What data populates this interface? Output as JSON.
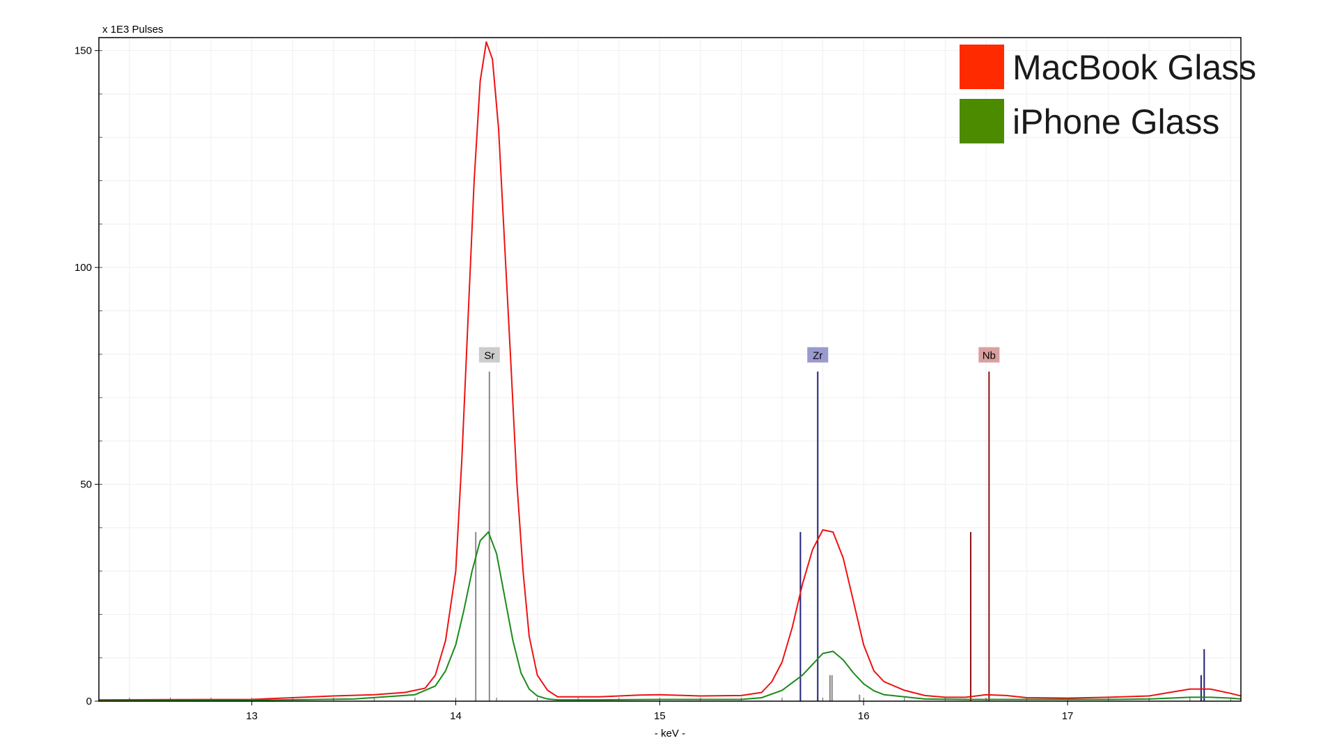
{
  "chart_data": {
    "type": "line",
    "title": "",
    "ylabel": "x 1E3 Pulses",
    "xlabel": "- keV -",
    "xlim": [
      12.25,
      17.85
    ],
    "ylim": [
      0,
      153
    ],
    "xticks": [
      13,
      14,
      15,
      16,
      17
    ],
    "yticks": [
      0,
      50,
      100,
      150
    ],
    "y_minor_step": 10,
    "x_minor_step": 0.2,
    "grid": true,
    "legend_position": "top-right",
    "series": [
      {
        "name": "MacBook Glass",
        "color": "#ff2a00",
        "line_color": "#ee1111",
        "x": [
          12.25,
          13.0,
          13.2,
          13.4,
          13.6,
          13.75,
          13.85,
          13.9,
          13.95,
          14.0,
          14.03,
          14.06,
          14.09,
          14.12,
          14.15,
          14.18,
          14.21,
          14.24,
          14.27,
          14.3,
          14.33,
          14.36,
          14.4,
          14.45,
          14.5,
          14.7,
          14.9,
          15.0,
          15.2,
          15.4,
          15.5,
          15.55,
          15.6,
          15.65,
          15.7,
          15.75,
          15.8,
          15.85,
          15.9,
          15.95,
          16.0,
          16.05,
          16.1,
          16.2,
          16.3,
          16.4,
          16.5,
          16.6,
          16.7,
          16.8,
          17.0,
          17.2,
          17.4,
          17.5,
          17.6,
          17.7,
          17.8,
          17.85
        ],
        "y": [
          0.3,
          0.4,
          0.8,
          1.2,
          1.5,
          2.0,
          3.0,
          6.0,
          14.0,
          30.0,
          56.0,
          88.0,
          120.0,
          143.0,
          152.0,
          148.0,
          132.0,
          105.0,
          78.0,
          50.0,
          30.0,
          15.0,
          6.0,
          2.5,
          1.0,
          1.0,
          1.4,
          1.5,
          1.2,
          1.3,
          2.0,
          4.5,
          9.0,
          17.0,
          27.0,
          35.0,
          39.5,
          39.0,
          33.0,
          23.0,
          13.0,
          7.0,
          4.5,
          2.5,
          1.3,
          0.9,
          0.9,
          1.5,
          1.3,
          0.8,
          0.7,
          0.9,
          1.2,
          2.0,
          2.8,
          2.8,
          1.8,
          1.2
        ]
      },
      {
        "name": "iPhone Glass",
        "color": "#4c8b00",
        "line_color": "#1a8a1a",
        "x": [
          12.25,
          13.0,
          13.5,
          13.8,
          13.9,
          13.95,
          14.0,
          14.04,
          14.08,
          14.12,
          14.16,
          14.2,
          14.24,
          14.28,
          14.32,
          14.36,
          14.4,
          14.45,
          14.5,
          14.7,
          15.0,
          15.2,
          15.4,
          15.5,
          15.6,
          15.7,
          15.75,
          15.8,
          15.85,
          15.9,
          15.95,
          16.0,
          16.05,
          16.1,
          16.2,
          16.3,
          16.5,
          16.8,
          17.2,
          17.4,
          17.6,
          17.7,
          17.8,
          17.85
        ],
        "y": [
          0.1,
          0.2,
          0.5,
          1.5,
          3.5,
          7.0,
          13.0,
          21.0,
          30.0,
          37.0,
          39.0,
          34.0,
          24.0,
          14.0,
          6.5,
          2.8,
          1.2,
          0.5,
          0.3,
          0.3,
          0.4,
          0.4,
          0.4,
          0.8,
          2.5,
          6.0,
          8.5,
          11.0,
          11.5,
          9.5,
          6.5,
          4.0,
          2.4,
          1.5,
          1.0,
          0.5,
          0.4,
          0.4,
          0.4,
          0.5,
          0.9,
          0.9,
          0.7,
          0.5
        ]
      }
    ],
    "element_markers": [
      {
        "label": "Sr",
        "energy": 14.165,
        "height": 76,
        "color": "#888888",
        "label_bg": "#cccccc"
      },
      {
        "label": "Zr",
        "energy": 15.775,
        "height": 76,
        "color": "#1f1f7a",
        "label_bg": "#9a9ad0"
      },
      {
        "label": "Nb",
        "energy": 16.615,
        "height": 76,
        "color": "#8a1010",
        "label_bg": "#d9a0a0"
      }
    ],
    "secondary_lines": [
      {
        "energy": 14.098,
        "height": 39,
        "color": "#888888"
      },
      {
        "energy": 15.69,
        "height": 39,
        "color": "#1f1f7a"
      },
      {
        "energy": 15.835,
        "height": 6,
        "color": "#888888"
      },
      {
        "energy": 15.845,
        "height": 6,
        "color": "#888888"
      },
      {
        "energy": 15.98,
        "height": 1.5,
        "color": "#888888"
      },
      {
        "energy": 16.525,
        "height": 39,
        "color": "#8a1010"
      },
      {
        "energy": 17.655,
        "height": 6,
        "color": "#1f1f7a"
      },
      {
        "energy": 17.67,
        "height": 12,
        "color": "#1f1f7a"
      }
    ]
  }
}
